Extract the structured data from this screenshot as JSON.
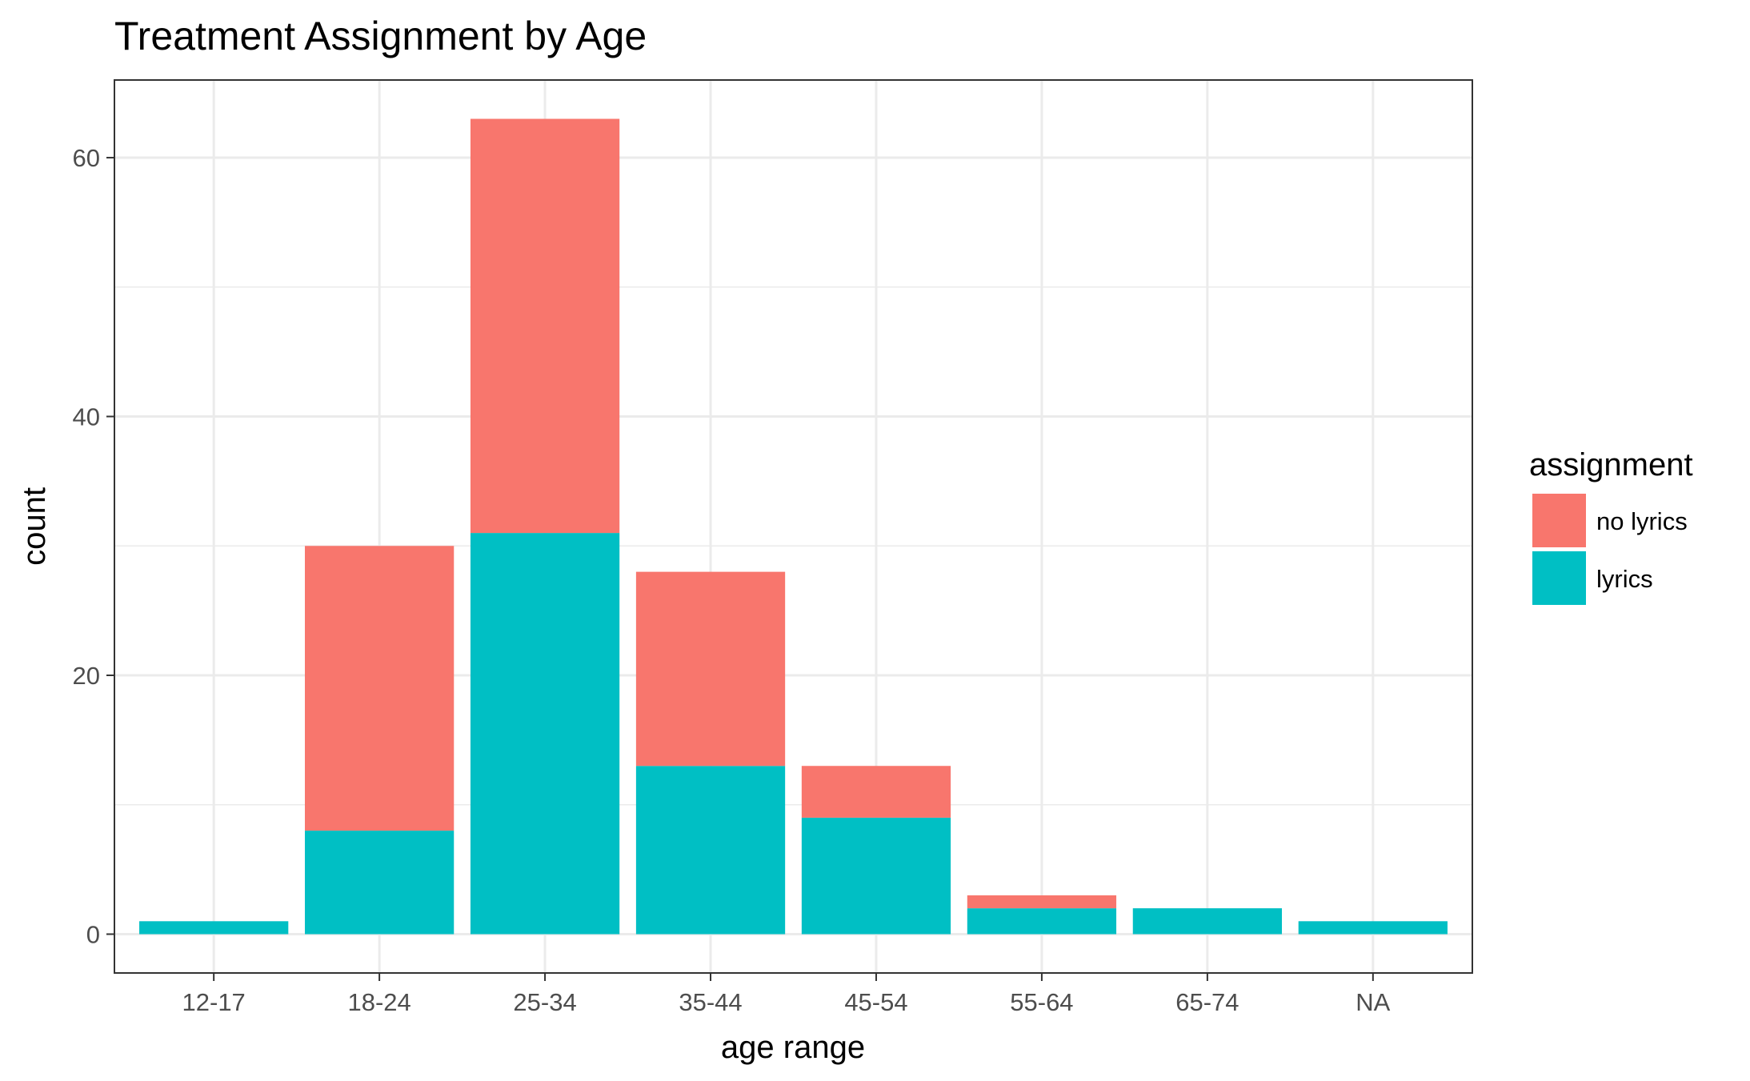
{
  "chart_data": {
    "type": "bar",
    "stacked": true,
    "title": "Treatment Assignment by Age",
    "xlabel": "age range",
    "ylabel": "count",
    "categories": [
      "12-17",
      "18-24",
      "25-34",
      "35-44",
      "45-54",
      "55-64",
      "65-74",
      "NA"
    ],
    "series": [
      {
        "name": "no lyrics",
        "color": "#F8766D",
        "values": [
          0,
          22,
          32,
          15,
          4,
          1,
          0,
          0
        ]
      },
      {
        "name": "lyrics",
        "color": "#00BFC4",
        "values": [
          1,
          8,
          31,
          13,
          9,
          2,
          2,
          1
        ]
      }
    ],
    "ylim": [
      -3,
      66
    ],
    "yticks": [
      0,
      20,
      40,
      60
    ],
    "grid": true,
    "legend": {
      "title": "assignment",
      "position": "right"
    }
  }
}
